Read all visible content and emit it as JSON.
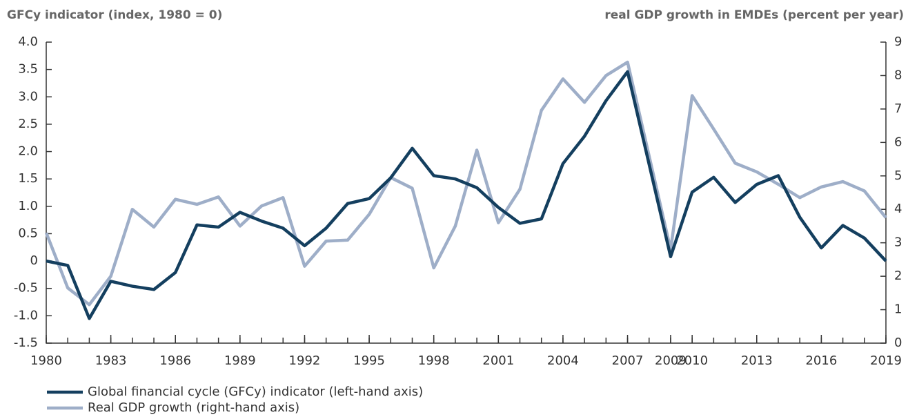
{
  "chart_data": {
    "type": "line",
    "ylabel": "GFCy indicator (index, 1980 = 0)",
    "y2label": "real GDP growth in EMDEs (percent per year)",
    "x": [
      1980,
      1981,
      1982,
      1983,
      1984,
      1985,
      1986,
      1987,
      1988,
      1989,
      1990,
      1991,
      1992,
      1993,
      1994,
      1995,
      1996,
      1997,
      1998,
      1999,
      2000,
      2001,
      2002,
      2003,
      2004,
      2005,
      2006,
      2007,
      2008,
      2009,
      2010,
      2011,
      2012,
      2013,
      2014,
      2015,
      2016,
      2017,
      2018,
      2019
    ],
    "xlim": [
      1980,
      2019
    ],
    "xticks": [
      1980,
      1983,
      1986,
      1989,
      1992,
      1995,
      1998,
      2001,
      2004,
      2007,
      2009,
      2010,
      2013,
      2016,
      2019
    ],
    "ylim": [
      -1.5,
      4.0
    ],
    "yticks": [
      {
        "value": -1.5,
        "label": "-1.5"
      },
      {
        "value": -1,
        "label": "-1.0"
      },
      -0.5,
      0,
      0.5,
      {
        "value": 1,
        "label": "1.0"
      },
      1.5,
      {
        "value": 2,
        "label": "2.0"
      },
      2.5,
      {
        "value": 3,
        "label": "3.0"
      },
      3.5,
      {
        "value": 4,
        "label": "4.0"
      }
    ],
    "y2lim": [
      0,
      9
    ],
    "y2ticks": [
      0,
      1,
      2,
      3,
      4,
      5,
      6,
      7,
      8,
      9
    ],
    "series": [
      {
        "name": "Global financial cycle (GFCy) indicator (left-hand axis)",
        "color": "#143f5f",
        "axis": "y",
        "values": [
          0,
          -0.08,
          -1.05,
          -0.37,
          -0.46,
          -0.52,
          -0.21,
          0.66,
          0.62,
          0.89,
          0.73,
          0.6,
          0.28,
          0.6,
          1.05,
          1.14,
          1.52,
          2.06,
          1.56,
          1.5,
          1.34,
          0.98,
          0.69,
          0.77,
          1.78,
          2.28,
          2.93,
          3.46,
          1.77,
          0.08,
          1.26,
          1.53,
          1.07,
          1.4,
          1.56,
          0.8,
          0.24,
          0.65,
          0.42,
          0
        ]
      },
      {
        "name": "Real GDP growth (right-hand axis)",
        "color": "#9eaec8",
        "axis": "y2",
        "values": [
          3.3,
          1.65,
          1.15,
          2.0,
          4.0,
          3.47,
          4.3,
          4.15,
          4.37,
          3.5,
          4.1,
          4.35,
          2.3,
          3.05,
          3.08,
          3.85,
          4.95,
          4.63,
          2.25,
          3.5,
          5.77,
          3.6,
          4.6,
          6.96,
          7.9,
          7.2,
          8.0,
          8.4,
          5.6,
          2.8,
          7.4,
          6.4,
          5.38,
          5.12,
          4.75,
          4.35,
          4.67,
          4.83,
          4.55,
          3.75
        ]
      }
    ]
  }
}
